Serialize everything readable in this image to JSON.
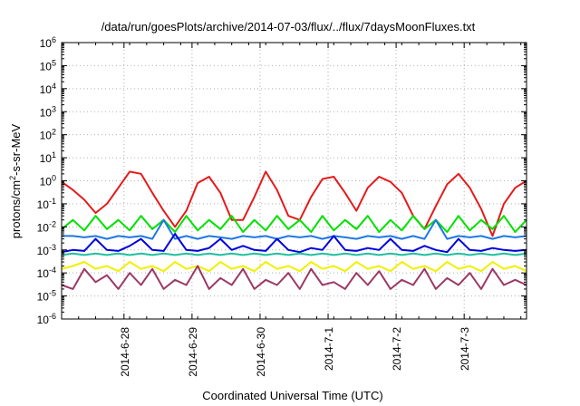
{
  "chart_data": {
    "type": "line",
    "title": "/data/run/goesPlots/archive/2014-07-03/flux/../flux/7daysMoonFluxes.txt",
    "xlabel": "Coordinated Universal Time (UTC)",
    "ylabel_base": "protons/cm",
    "ylabel_sup": "2",
    "ylabel_rest": "-s-sr-MeV",
    "yscale": "log",
    "ylim": [
      1e-06,
      1000000.0
    ],
    "ytick_exponents": [
      -6,
      -5,
      -4,
      -3,
      -2,
      -1,
      0,
      1,
      2,
      3,
      4,
      5,
      6
    ],
    "ytick_base": "10",
    "xlim": [
      "2014-06-27T02:00",
      "2014-07-03T22:00"
    ],
    "xtick_labels": [
      "2014-6-28",
      "2014-6-29",
      "2014-6-30",
      "2014-7-1",
      "2014-7-2",
      "2014-7-3"
    ],
    "xtick_values": [
      "2014-06-28",
      "2014-06-29",
      "2014-06-30",
      "2014-07-01",
      "2014-07-02",
      "2014-07-03"
    ],
    "grid": true,
    "series_times": [
      "2014-06-27T02:00",
      "2014-06-27T06:00",
      "2014-06-27T10:00",
      "2014-06-27T14:00",
      "2014-06-27T18:00",
      "2014-06-27T22:00",
      "2014-06-28T02:00",
      "2014-06-28T06:00",
      "2014-06-28T10:00",
      "2014-06-28T14:00",
      "2014-06-28T18:00",
      "2014-06-28T22:00",
      "2014-06-29T02:00",
      "2014-06-29T06:00",
      "2014-06-29T10:00",
      "2014-06-29T14:00",
      "2014-06-29T18:00",
      "2014-06-29T22:00",
      "2014-06-30T02:00",
      "2014-06-30T06:00",
      "2014-06-30T10:00",
      "2014-06-30T14:00",
      "2014-06-30T18:00",
      "2014-06-30T22:00",
      "2014-07-01T02:00",
      "2014-07-01T06:00",
      "2014-07-01T10:00",
      "2014-07-01T14:00",
      "2014-07-01T18:00",
      "2014-07-01T22:00",
      "2014-07-02T02:00",
      "2014-07-02T06:00",
      "2014-07-02T10:00",
      "2014-07-02T14:00",
      "2014-07-02T18:00",
      "2014-07-02T22:00",
      "2014-07-03T02:00",
      "2014-07-03T06:00",
      "2014-07-03T10:00",
      "2014-07-03T14:00",
      "2014-07-03T18:00",
      "2014-07-03T22:00"
    ],
    "series": [
      {
        "color": "#e41a1c",
        "values": [
          0.9,
          0.4,
          0.15,
          0.04,
          0.1,
          0.5,
          2.5,
          2.0,
          0.3,
          0.05,
          0.01,
          0.05,
          0.8,
          1.5,
          0.3,
          0.02,
          0.02,
          0.2,
          2.5,
          0.4,
          0.03,
          0.02,
          0.2,
          1.2,
          1.5,
          0.3,
          0.05,
          0.5,
          1.5,
          0.9,
          0.3,
          0.03,
          0.008,
          0.08,
          0.7,
          2.0,
          0.5,
          0.06,
          0.004,
          0.1,
          0.5,
          1.0
        ]
      },
      {
        "color": "#00e000",
        "values": [
          0.008,
          0.02,
          0.007,
          0.03,
          0.008,
          0.02,
          0.007,
          0.03,
          0.008,
          0.02,
          0.006,
          0.03,
          0.007,
          0.02,
          0.008,
          0.03,
          0.006,
          0.02,
          0.007,
          0.03,
          0.008,
          0.02,
          0.006,
          0.03,
          0.007,
          0.02,
          0.008,
          0.03,
          0.006,
          0.02,
          0.007,
          0.03,
          0.008,
          0.02,
          0.006,
          0.03,
          0.007,
          0.02,
          0.008,
          0.03,
          0.006,
          0.02
        ]
      },
      {
        "color": "#1f78e6",
        "values": [
          0.004,
          0.004,
          0.0035,
          0.004,
          0.003,
          0.004,
          0.0035,
          0.004,
          0.003,
          0.02,
          0.003,
          0.004,
          0.003,
          0.004,
          0.0035,
          0.003,
          0.004,
          0.0035,
          0.004,
          0.003,
          0.004,
          0.0035,
          0.004,
          0.003,
          0.004,
          0.0035,
          0.003,
          0.004,
          0.0035,
          0.004,
          0.003,
          0.004,
          0.003,
          0.02,
          0.003,
          0.004,
          0.0035,
          0.004,
          0.003,
          0.004,
          0.0035,
          0.004
        ]
      },
      {
        "color": "#0000dd",
        "values": [
          0.0008,
          0.001,
          0.0009,
          0.003,
          0.001,
          0.0009,
          0.0015,
          0.003,
          0.001,
          0.0009,
          0.005,
          0.001,
          0.0009,
          0.0012,
          0.003,
          0.001,
          0.0015,
          0.001,
          0.0009,
          0.003,
          0.001,
          0.0008,
          0.0012,
          0.001,
          0.004,
          0.001,
          0.0009,
          0.0012,
          0.001,
          0.003,
          0.001,
          0.0009,
          0.0015,
          0.001,
          0.0008,
          0.003,
          0.001,
          0.0009,
          0.0012,
          0.001,
          0.0009,
          0.001
        ]
      },
      {
        "color": "#20c0a0",
        "values": [
          0.0006,
          0.0007,
          0.0006,
          0.0007,
          0.0006,
          0.0007,
          0.0006,
          0.0007,
          0.0006,
          0.0007,
          0.0006,
          0.0007,
          0.0006,
          0.0007,
          0.0006,
          0.0007,
          0.0006,
          0.0007,
          0.0006,
          0.0007,
          0.0006,
          0.0007,
          0.0006,
          0.0007,
          0.0006,
          0.0007,
          0.0006,
          0.0007,
          0.0006,
          0.0007,
          0.0006,
          0.0007,
          0.0006,
          0.0007,
          0.0006,
          0.0007,
          0.0006,
          0.0007,
          0.0006,
          0.0007,
          0.0006,
          0.0007
        ]
      },
      {
        "color": "#f0f000",
        "values": [
          0.00015,
          0.0002,
          0.0003,
          0.00015,
          0.0002,
          0.00012,
          0.0003,
          0.00015,
          0.0002,
          0.00012,
          0.0003,
          0.00015,
          0.0002,
          0.00012,
          0.0003,
          0.00015,
          0.0002,
          0.00012,
          0.0003,
          0.00015,
          0.0002,
          0.00012,
          0.0003,
          0.00015,
          0.0002,
          0.00012,
          0.0003,
          0.00015,
          0.0002,
          0.00012,
          0.0003,
          0.00015,
          0.0002,
          0.00012,
          0.0003,
          0.00015,
          0.0002,
          0.00012,
          0.0003,
          0.00015,
          0.0002,
          0.00012
        ]
      },
      {
        "color": "#9b3a66",
        "values": [
          3e-05,
          2e-05,
          0.00015,
          4e-05,
          8e-05,
          2e-05,
          0.0001,
          3e-05,
          0.00015,
          2e-05,
          5e-05,
          3e-05,
          0.0002,
          2e-05,
          6e-05,
          3e-05,
          0.00015,
          2e-05,
          5e-05,
          3e-05,
          0.0001,
          2e-05,
          0.00015,
          3e-05,
          4e-05,
          2e-05,
          0.0001,
          3e-05,
          0.00012,
          2e-05,
          5e-05,
          3e-05,
          0.00015,
          2e-05,
          6e-05,
          3e-05,
          0.0001,
          2e-05,
          0.00015,
          3e-05,
          5e-05,
          3e-05
        ]
      }
    ]
  }
}
